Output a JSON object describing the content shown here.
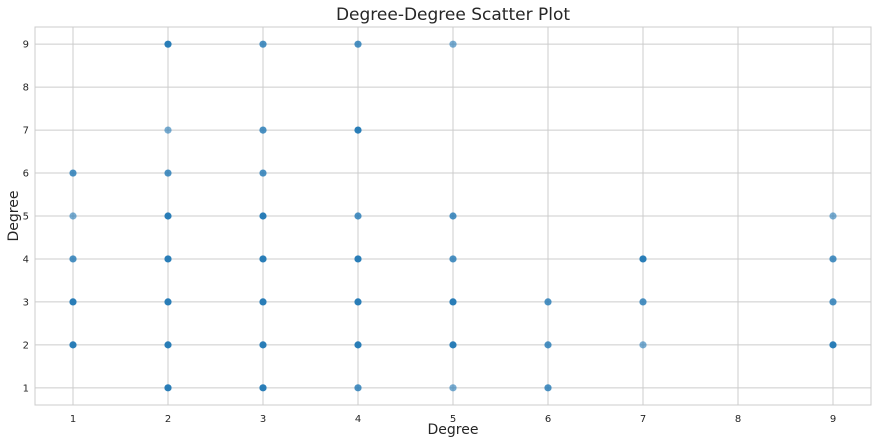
{
  "chart_data": {
    "type": "scatter",
    "title": "Degree-Degree Scatter Plot",
    "xlabel": "Degree",
    "ylabel": "Degree",
    "xlim": [
      0.6,
      9.4
    ],
    "ylim": [
      0.6,
      9.4
    ],
    "xticks": [
      1,
      2,
      3,
      4,
      5,
      6,
      7,
      8,
      9
    ],
    "yticks": [
      1,
      2,
      3,
      4,
      5,
      6,
      7,
      8,
      9
    ],
    "grid": true,
    "point_color": "#1f77b4",
    "points": [
      {
        "x": 1,
        "y": 2,
        "w": 3
      },
      {
        "x": 1,
        "y": 3,
        "w": 3
      },
      {
        "x": 1,
        "y": 4,
        "w": 2
      },
      {
        "x": 1,
        "y": 5,
        "w": 1
      },
      {
        "x": 1,
        "y": 6,
        "w": 2
      },
      {
        "x": 2,
        "y": 1,
        "w": 3
      },
      {
        "x": 2,
        "y": 2,
        "w": 3
      },
      {
        "x": 2,
        "y": 3,
        "w": 3
      },
      {
        "x": 2,
        "y": 4,
        "w": 3
      },
      {
        "x": 2,
        "y": 5,
        "w": 3
      },
      {
        "x": 2,
        "y": 6,
        "w": 2
      },
      {
        "x": 2,
        "y": 7,
        "w": 1
      },
      {
        "x": 2,
        "y": 9,
        "w": 3
      },
      {
        "x": 3,
        "y": 1,
        "w": 3
      },
      {
        "x": 3,
        "y": 2,
        "w": 3
      },
      {
        "x": 3,
        "y": 3,
        "w": 3
      },
      {
        "x": 3,
        "y": 4,
        "w": 3
      },
      {
        "x": 3,
        "y": 5,
        "w": 3
      },
      {
        "x": 3,
        "y": 6,
        "w": 2
      },
      {
        "x": 3,
        "y": 7,
        "w": 2
      },
      {
        "x": 3,
        "y": 9,
        "w": 2
      },
      {
        "x": 4,
        "y": 1,
        "w": 2
      },
      {
        "x": 4,
        "y": 2,
        "w": 3
      },
      {
        "x": 4,
        "y": 3,
        "w": 3
      },
      {
        "x": 4,
        "y": 4,
        "w": 3
      },
      {
        "x": 4,
        "y": 5,
        "w": 2
      },
      {
        "x": 4,
        "y": 7,
        "w": 3
      },
      {
        "x": 4,
        "y": 9,
        "w": 2
      },
      {
        "x": 5,
        "y": 1,
        "w": 1
      },
      {
        "x": 5,
        "y": 2,
        "w": 3
      },
      {
        "x": 5,
        "y": 3,
        "w": 3
      },
      {
        "x": 5,
        "y": 4,
        "w": 2
      },
      {
        "x": 5,
        "y": 5,
        "w": 2
      },
      {
        "x": 5,
        "y": 9,
        "w": 1
      },
      {
        "x": 6,
        "y": 1,
        "w": 2
      },
      {
        "x": 6,
        "y": 2,
        "w": 2
      },
      {
        "x": 6,
        "y": 3,
        "w": 2
      },
      {
        "x": 7,
        "y": 2,
        "w": 1
      },
      {
        "x": 7,
        "y": 3,
        "w": 2
      },
      {
        "x": 7,
        "y": 4,
        "w": 3
      },
      {
        "x": 9,
        "y": 2,
        "w": 3
      },
      {
        "x": 9,
        "y": 3,
        "w": 2
      },
      {
        "x": 9,
        "y": 4,
        "w": 2
      },
      {
        "x": 9,
        "y": 5,
        "w": 1
      }
    ]
  }
}
